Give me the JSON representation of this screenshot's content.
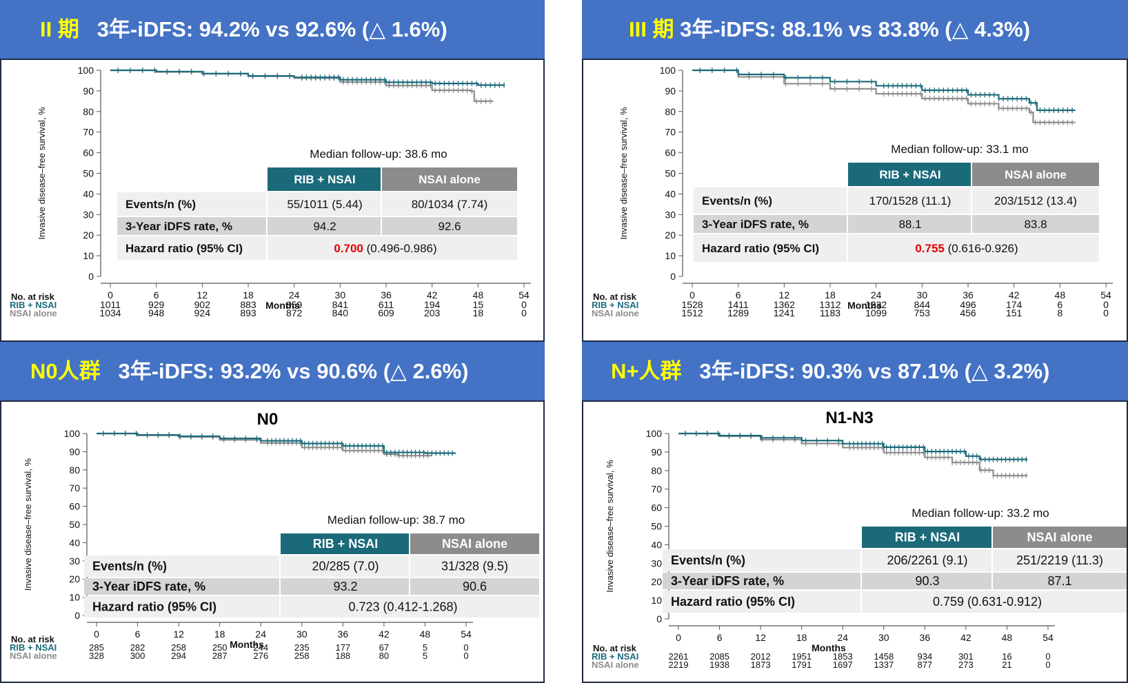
{
  "colors": {
    "banner_bg": "#4472c4",
    "banner_text": "#ffffff",
    "banner_highlight": "#ffff00",
    "rib": "#1b6a7a",
    "nsai": "#8c8c8c",
    "hr_red": "#e00000",
    "row_dark": "#d4d4d4",
    "row_light": "#efefef"
  },
  "common": {
    "ylabel": "Invasive disease–free survival, %",
    "xlabel": "Months",
    "risk_header": "No. at risk",
    "col_rib": "RIB + NSAI",
    "col_nsai": "NSAI alone",
    "row_events": "Events/n (%)",
    "row_rate": "3-Year iDFS rate, %",
    "row_hr": "Hazard ratio (95% CI)"
  },
  "panels": [
    {
      "banner": {
        "highlight": "II 期",
        "text": "3年-iDFS:  94.2%  vs  92.6%  (△ 1.6%)"
      },
      "subtitle": "",
      "followup": "Median follow-up: 38.6 mo",
      "events_rib": "55/1011 (5.44)",
      "events_nsai": "80/1034 (7.74)",
      "rate_rib": "94.2",
      "rate_nsai": "92.6",
      "hr_value": "0.700",
      "hr_ci": "(0.496-0.986)",
      "hr_highlight": true,
      "risk_rib": [
        "1011",
        "929",
        "902",
        "883",
        "859",
        "841",
        "611",
        "194",
        "15",
        "0"
      ],
      "risk_nsai": [
        "1034",
        "948",
        "924",
        "893",
        "872",
        "840",
        "609",
        "203",
        "18",
        "0"
      ]
    },
    {
      "banner": {
        "highlight": "III 期",
        "text": "3年-iDFS:  88.1%  vs  83.8% (△ 4.3%)"
      },
      "subtitle": "",
      "followup": "Median follow-up: 33.1 mo",
      "events_rib": "170/1528 (11.1)",
      "events_nsai": "203/1512 (13.4)",
      "rate_rib": "88.1",
      "rate_nsai": "83.8",
      "hr_value": "0.755",
      "hr_ci": "(0.616-0.926)",
      "hr_highlight": true,
      "risk_rib": [
        "1528",
        "1411",
        "1362",
        "1312",
        "1232",
        "844",
        "496",
        "174",
        "6",
        "0"
      ],
      "risk_nsai": [
        "1512",
        "1289",
        "1241",
        "1183",
        "1099",
        "753",
        "456",
        "151",
        "8",
        "0"
      ]
    },
    {
      "banner": {
        "highlight": "N0人群",
        "text": "3年-iDFS: 93.2%  vs  90.6%  (△ 2.6%)"
      },
      "subtitle": "N0",
      "followup": "Median follow-up: 38.7 mo",
      "events_rib": "20/285 (7.0)",
      "events_nsai": "31/328 (9.5)",
      "rate_rib": "93.2",
      "rate_nsai": "90.6",
      "hr_value": "0.723",
      "hr_ci": "(0.412-1.268)",
      "hr_highlight": false,
      "risk_rib": [
        "285",
        "282",
        "258",
        "250",
        "244",
        "235",
        "177",
        "67",
        "5",
        "0"
      ],
      "risk_nsai": [
        "328",
        "300",
        "294",
        "287",
        "276",
        "258",
        "188",
        "80",
        "5",
        "0"
      ]
    },
    {
      "banner": {
        "highlight": "N+人群",
        "text": "3年-iDFS:  90.3%  vs  87.1% (△ 3.2%)"
      },
      "subtitle": "N1-N3",
      "followup": "Median follow-up: 33.2 mo",
      "events_rib": "206/2261 (9.1)",
      "events_nsai": "251/2219 (11.3)",
      "rate_rib": "90.3",
      "rate_nsai": "87.1",
      "hr_value": "0.759",
      "hr_ci": "(0.631-0.912)",
      "hr_highlight": false,
      "risk_rib": [
        "2261",
        "2085",
        "2012",
        "1951",
        "1853",
        "1458",
        "934",
        "301",
        "16",
        "0"
      ],
      "risk_nsai": [
        "2219",
        "1938",
        "1873",
        "1791",
        "1697",
        "1337",
        "877",
        "273",
        "21",
        "0"
      ]
    }
  ],
  "chart_data": [
    {
      "type": "line",
      "title": "",
      "xlabel": "Months",
      "ylabel": "Invasive disease–free survival, %",
      "xlim": [
        0,
        54
      ],
      "ylim": [
        0,
        100
      ],
      "xticks": [
        0,
        6,
        12,
        18,
        24,
        30,
        36,
        42,
        48,
        54
      ],
      "yticks": [
        0,
        10,
        20,
        30,
        40,
        50,
        60,
        70,
        80,
        90,
        100
      ],
      "series": [
        {
          "name": "RIB + NSAI",
          "x": [
            0,
            6,
            12,
            18,
            24,
            30,
            36,
            42,
            48,
            51.5
          ],
          "y": [
            100,
            99.4,
            98.4,
            97.3,
            96.6,
            95.4,
            94.2,
            93.6,
            92.8,
            92.8
          ]
        },
        {
          "name": "NSAI alone",
          "x": [
            0,
            6,
            12,
            18,
            24,
            30,
            36,
            42,
            47,
            47.5,
            50
          ],
          "y": [
            100,
            99.2,
            98.3,
            97.1,
            96.2,
            94.3,
            92.6,
            90.3,
            89.9,
            85,
            85
          ]
        }
      ]
    },
    {
      "type": "line",
      "title": "",
      "xlabel": "Months",
      "ylabel": "Invasive disease–free survival, %",
      "xlim": [
        0,
        54
      ],
      "ylim": [
        0,
        100
      ],
      "xticks": [
        0,
        6,
        12,
        18,
        24,
        30,
        36,
        42,
        48,
        54
      ],
      "yticks": [
        0,
        10,
        20,
        30,
        40,
        50,
        60,
        70,
        80,
        90,
        100
      ],
      "series": [
        {
          "name": "RIB + NSAI",
          "x": [
            0,
            6,
            12,
            18,
            24,
            30,
            36,
            40,
            44,
            45,
            50
          ],
          "y": [
            100,
            98,
            96.4,
            94.5,
            92.5,
            90.3,
            88.1,
            86.2,
            84.2,
            80.6,
            80.6
          ]
        },
        {
          "name": "NSAI alone",
          "x": [
            0,
            6,
            12,
            18,
            24,
            30,
            36,
            40,
            44,
            44.5,
            50
          ],
          "y": [
            100,
            96.8,
            93.5,
            91,
            88.6,
            86.3,
            83.8,
            81.5,
            79.6,
            74.7,
            74.7
          ]
        }
      ]
    },
    {
      "type": "line",
      "title": "N0",
      "xlabel": "Months",
      "ylabel": "Invasive disease–free survival, %",
      "xlim": [
        0,
        54
      ],
      "ylim": [
        0,
        100
      ],
      "xticks": [
        0,
        6,
        12,
        18,
        24,
        30,
        36,
        42,
        48,
        54
      ],
      "yticks": [
        0,
        10,
        20,
        30,
        40,
        50,
        60,
        70,
        80,
        90,
        100
      ],
      "series": [
        {
          "name": "RIB + NSAI",
          "x": [
            0,
            6,
            12,
            18,
            24,
            30,
            36,
            42,
            48,
            52.5
          ],
          "y": [
            100,
            99.2,
            98.5,
            97.3,
            96,
            94.5,
            93.2,
            89.6,
            89.2,
            89.2
          ]
        },
        {
          "name": "NSAI alone",
          "x": [
            0,
            6,
            12,
            18,
            24,
            30,
            36,
            42,
            44,
            48,
            49
          ],
          "y": [
            100,
            99,
            98.1,
            96.5,
            94.8,
            92.3,
            90.6,
            88.6,
            87.8,
            87.8,
            87.8
          ]
        }
      ]
    },
    {
      "type": "line",
      "title": "N1-N3",
      "xlabel": "Months",
      "ylabel": "Invasive disease–free survival, %",
      "xlim": [
        0,
        54
      ],
      "ylim": [
        0,
        100
      ],
      "xticks": [
        0,
        6,
        12,
        18,
        24,
        30,
        36,
        42,
        48,
        54
      ],
      "yticks": [
        0,
        10,
        20,
        30,
        40,
        50,
        60,
        70,
        80,
        90,
        100
      ],
      "series": [
        {
          "name": "RIB + NSAI",
          "x": [
            0,
            6,
            12,
            18,
            24,
            30,
            36,
            42,
            44,
            48,
            51
          ],
          "y": [
            100,
            98.9,
            97.7,
            96.2,
            94.5,
            92.6,
            90.3,
            87.8,
            86,
            86,
            86
          ]
        },
        {
          "name": "NSAI alone",
          "x": [
            0,
            6,
            12,
            18,
            24,
            30,
            36,
            40,
            44,
            46,
            51
          ],
          "y": [
            100,
            98.5,
            96.7,
            94.6,
            92.4,
            89.7,
            87.1,
            84.4,
            80.2,
            77.3,
            77.3
          ]
        }
      ]
    }
  ]
}
